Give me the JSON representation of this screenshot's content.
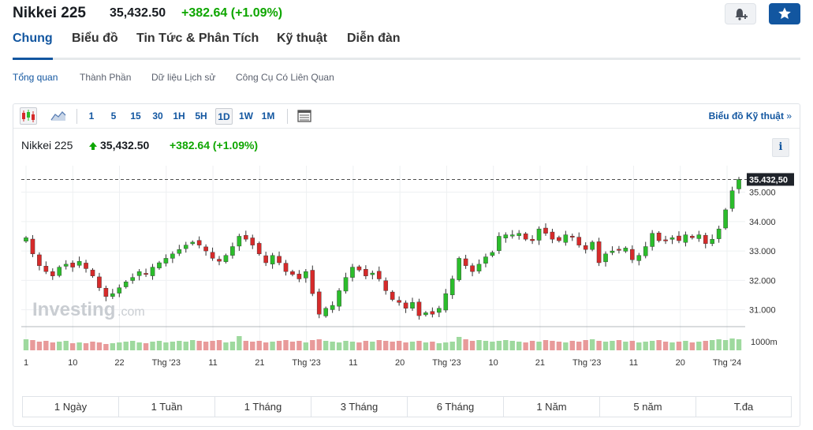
{
  "header": {
    "title": "Nikkei 225",
    "price": "35,432.50",
    "change": "+382.64",
    "change_pct": "(+1.09%)"
  },
  "tabs": [
    "Chung",
    "Biểu đồ",
    "Tin Tức & Phân Tích",
    "Kỹ thuật",
    "Diễn đàn"
  ],
  "subtabs": [
    "Tổng quan",
    "Thành Phần",
    "Dữ liệu Lịch sử",
    "Công Cụ Có Liên Quan"
  ],
  "toolbar": {
    "intervals": [
      "1",
      "5",
      "15",
      "30",
      "1H",
      "5H",
      "1D",
      "1W",
      "1M"
    ],
    "selected_interval": "1D",
    "tech_link": "Biểu đồ Kỹ thuật",
    "tech_link_chevron": "»"
  },
  "chart_header": {
    "name": "Nikkei 225",
    "price": "35,432.50",
    "change": "+382.64",
    "change_pct": "(+1.09%)",
    "info": "i"
  },
  "watermark": {
    "brand": "Investing",
    "suffix": ".com"
  },
  "colors": {
    "up": "#0ea600",
    "down": "#d91e2a",
    "candle_up": "#2bbd2b",
    "candle_down": "#d62a2a",
    "accent": "#1256a0"
  },
  "chart_data": {
    "type": "candlestick",
    "y_ticks": [
      "35.000",
      "34.000",
      "33.000",
      "32.000",
      "31.000"
    ],
    "y_tick_values": [
      35000,
      34000,
      33000,
      32000,
      31000
    ],
    "ylim": [
      30400,
      35900
    ],
    "last_price_label": "35.432,50",
    "last_price": 35432.5,
    "volume_label": "1000m",
    "x_ticks": [
      "1",
      "10",
      "22",
      "Thg '23",
      "11",
      "21",
      "Thg '23",
      "11",
      "20",
      "Thg '23",
      "10",
      "21",
      "Thg '23",
      "11",
      "20",
      "Thg '24"
    ],
    "closes": [
      33450,
      32900,
      32500,
      32300,
      32150,
      32450,
      32550,
      32450,
      32650,
      32400,
      32150,
      31750,
      31450,
      31550,
      31750,
      31950,
      32100,
      32300,
      32200,
      32450,
      32600,
      32750,
      32900,
      33050,
      33200,
      33300,
      33200,
      33000,
      32750,
      32650,
      32850,
      33150,
      33500,
      33400,
      33200,
      32900,
      32600,
      32850,
      32600,
      32300,
      32200,
      32050,
      32300,
      31550,
      30850,
      31050,
      31150,
      31650,
      32100,
      32450,
      32350,
      32150,
      32250,
      32050,
      31650,
      31350,
      31250,
      31050,
      31250,
      30800,
      30900,
      30850,
      31050,
      31550,
      32050,
      32750,
      32500,
      32300,
      32550,
      32800,
      32950,
      33500,
      33550,
      33550,
      33600,
      33400,
      33350,
      33750,
      33600,
      33400,
      33350,
      33550,
      33500,
      33200,
      33050,
      33300,
      32600,
      32900,
      33000,
      33050,
      33100,
      32700,
      32850,
      33150,
      33600,
      33350,
      33350,
      33450,
      33350,
      33550,
      33450,
      33550,
      33250,
      33400,
      33750,
      34400,
      35050,
      35432
    ]
  },
  "ranges": [
    "1 Ngày",
    "1 Tuần",
    "1 Tháng",
    "3 Tháng",
    "6 Tháng",
    "1 Năm",
    "5 năm",
    "T.đa"
  ]
}
